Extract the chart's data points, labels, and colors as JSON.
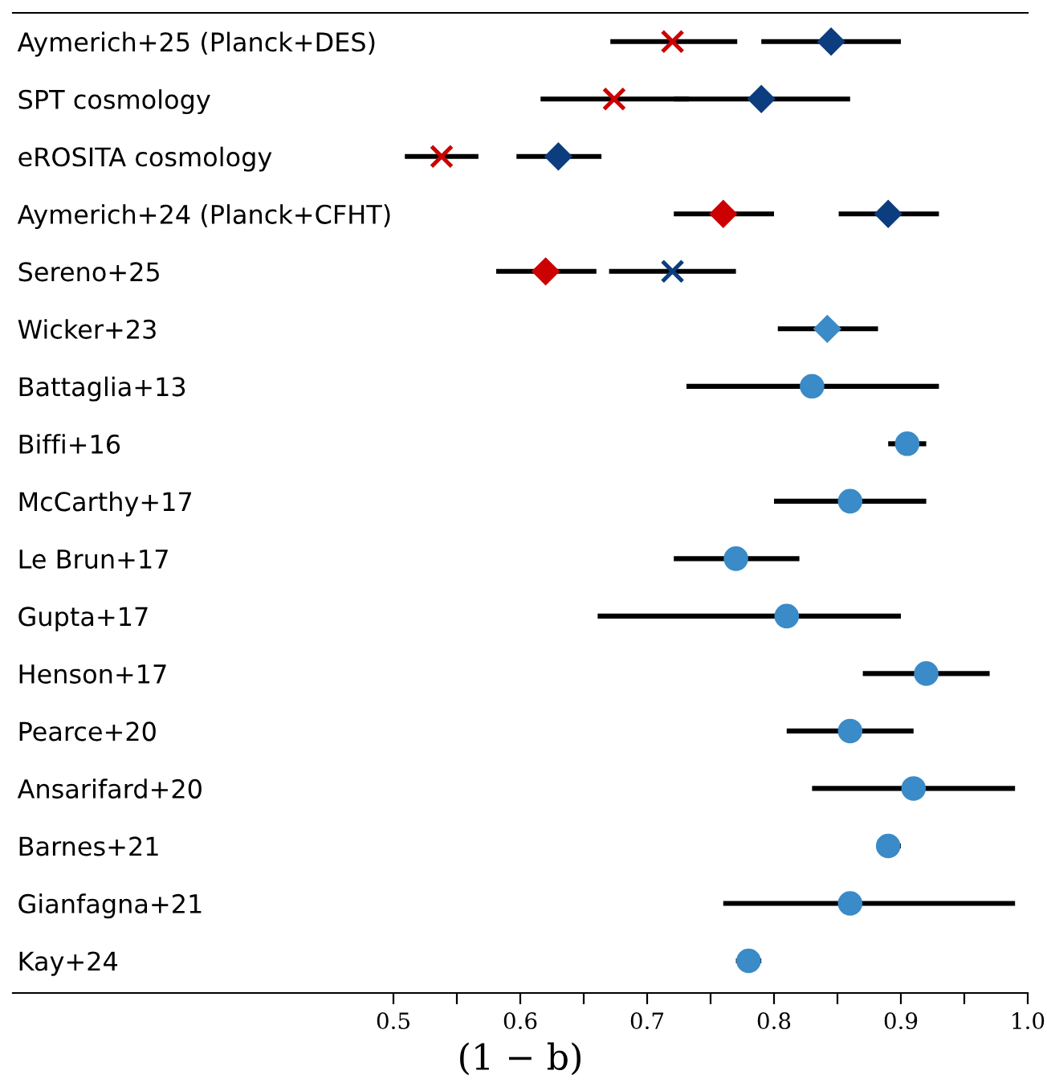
{
  "chart_data": {
    "type": "scatter",
    "orientation": "horizontal",
    "xlabel": "(1 − b)",
    "categories": [
      "Aymerich+25 (Planck+DES)",
      "SPT cosmology",
      "eROSITA cosmology",
      "Aymerich+24 (Planck+CFHT)",
      "Sereno+25",
      "Wicker+23",
      "Battaglia+13",
      "Biffi+16",
      "McCarthy+17",
      "Le Brun+17",
      "Gupta+17",
      "Henson+17",
      "Pearce+20",
      "Ansarifard+20",
      "Barnes+21",
      "Gianfagna+21",
      "Kay+24"
    ],
    "xlim": [
      0.2,
      1.0
    ],
    "xticks": [
      0.5,
      {
        "value": 0.55,
        "label": null
      },
      0.6,
      {
        "value": 0.65,
        "label": null
      },
      0.7,
      {
        "value": 0.75,
        "label": null
      },
      0.8,
      {
        "value": 0.85,
        "label": null
      },
      0.9,
      {
        "value": 0.95,
        "label": null
      },
      {
        "value": 1.0,
        "label": "1.0"
      }
    ],
    "grid": false,
    "legend": false,
    "series": [
      {
        "color": "#cc0000",
        "marker": "cross",
        "values": [
          0.72,
          0.674,
          0.538,
          null,
          null,
          null,
          null,
          null,
          null,
          null,
          null,
          null,
          null,
          null,
          null,
          null,
          null
        ],
        "errors": [
          [
            0.671,
            0.771
          ],
          [
            0.616,
            0.733
          ],
          [
            0.509,
            0.567
          ],
          null,
          null,
          null,
          null,
          null,
          null,
          null,
          null,
          null,
          null,
          null,
          null,
          null,
          null
        ]
      },
      {
        "color": "#0b3d7f",
        "marker": "diamond",
        "values": [
          0.845,
          0.79,
          0.63,
          0.89,
          null,
          null,
          null,
          null,
          null,
          null,
          null,
          null,
          null,
          null,
          null,
          null,
          null
        ],
        "errors": [
          [
            0.79,
            0.9
          ],
          [
            0.721,
            0.86
          ],
          [
            0.597,
            0.664
          ],
          [
            0.851,
            0.93
          ],
          null,
          null,
          null,
          null,
          null,
          null,
          null,
          null,
          null,
          null,
          null,
          null,
          null
        ]
      },
      {
        "color": "#cc0000",
        "marker": "diamond",
        "values": [
          null,
          null,
          null,
          0.76,
          0.62,
          null,
          null,
          null,
          null,
          null,
          null,
          null,
          null,
          null,
          null,
          null,
          null
        ],
        "errors": [
          null,
          null,
          null,
          [
            0.721,
            0.8
          ],
          [
            0.581,
            0.66
          ],
          null,
          null,
          null,
          null,
          null,
          null,
          null,
          null,
          null,
          null,
          null,
          null
        ]
      },
      {
        "color": "#0b3d7f",
        "marker": "cross",
        "values": [
          null,
          null,
          null,
          null,
          0.72,
          null,
          null,
          null,
          null,
          null,
          null,
          null,
          null,
          null,
          null,
          null,
          null
        ],
        "errors": [
          null,
          null,
          null,
          null,
          [
            0.67,
            0.77
          ],
          null,
          null,
          null,
          null,
          null,
          null,
          null,
          null,
          null,
          null,
          null,
          null
        ]
      },
      {
        "color": "#3a8bc8",
        "marker": "diamond",
        "values": [
          null,
          null,
          null,
          null,
          null,
          0.842,
          null,
          null,
          null,
          null,
          null,
          null,
          null,
          null,
          null,
          null,
          null
        ],
        "errors": [
          null,
          null,
          null,
          null,
          null,
          [
            0.803,
            0.882
          ],
          null,
          null,
          null,
          null,
          null,
          null,
          null,
          null,
          null,
          null,
          null
        ]
      },
      {
        "color": "#3a8bc8",
        "marker": "circle",
        "values": [
          null,
          null,
          null,
          null,
          null,
          null,
          0.83,
          0.905,
          0.86,
          0.77,
          0.81,
          0.92,
          0.86,
          0.91,
          0.89,
          0.86,
          0.78
        ],
        "errors": [
          null,
          null,
          null,
          null,
          null,
          null,
          [
            0.731,
            0.93
          ],
          [
            0.89,
            0.92
          ],
          [
            0.8,
            0.92
          ],
          [
            0.721,
            0.82
          ],
          [
            0.661,
            0.9
          ],
          [
            0.87,
            0.97
          ],
          [
            0.81,
            0.91
          ],
          [
            0.83,
            0.99
          ],
          [
            0.881,
            0.9
          ],
          [
            0.76,
            0.99
          ],
          [
            0.77,
            0.79
          ]
        ]
      }
    ]
  }
}
